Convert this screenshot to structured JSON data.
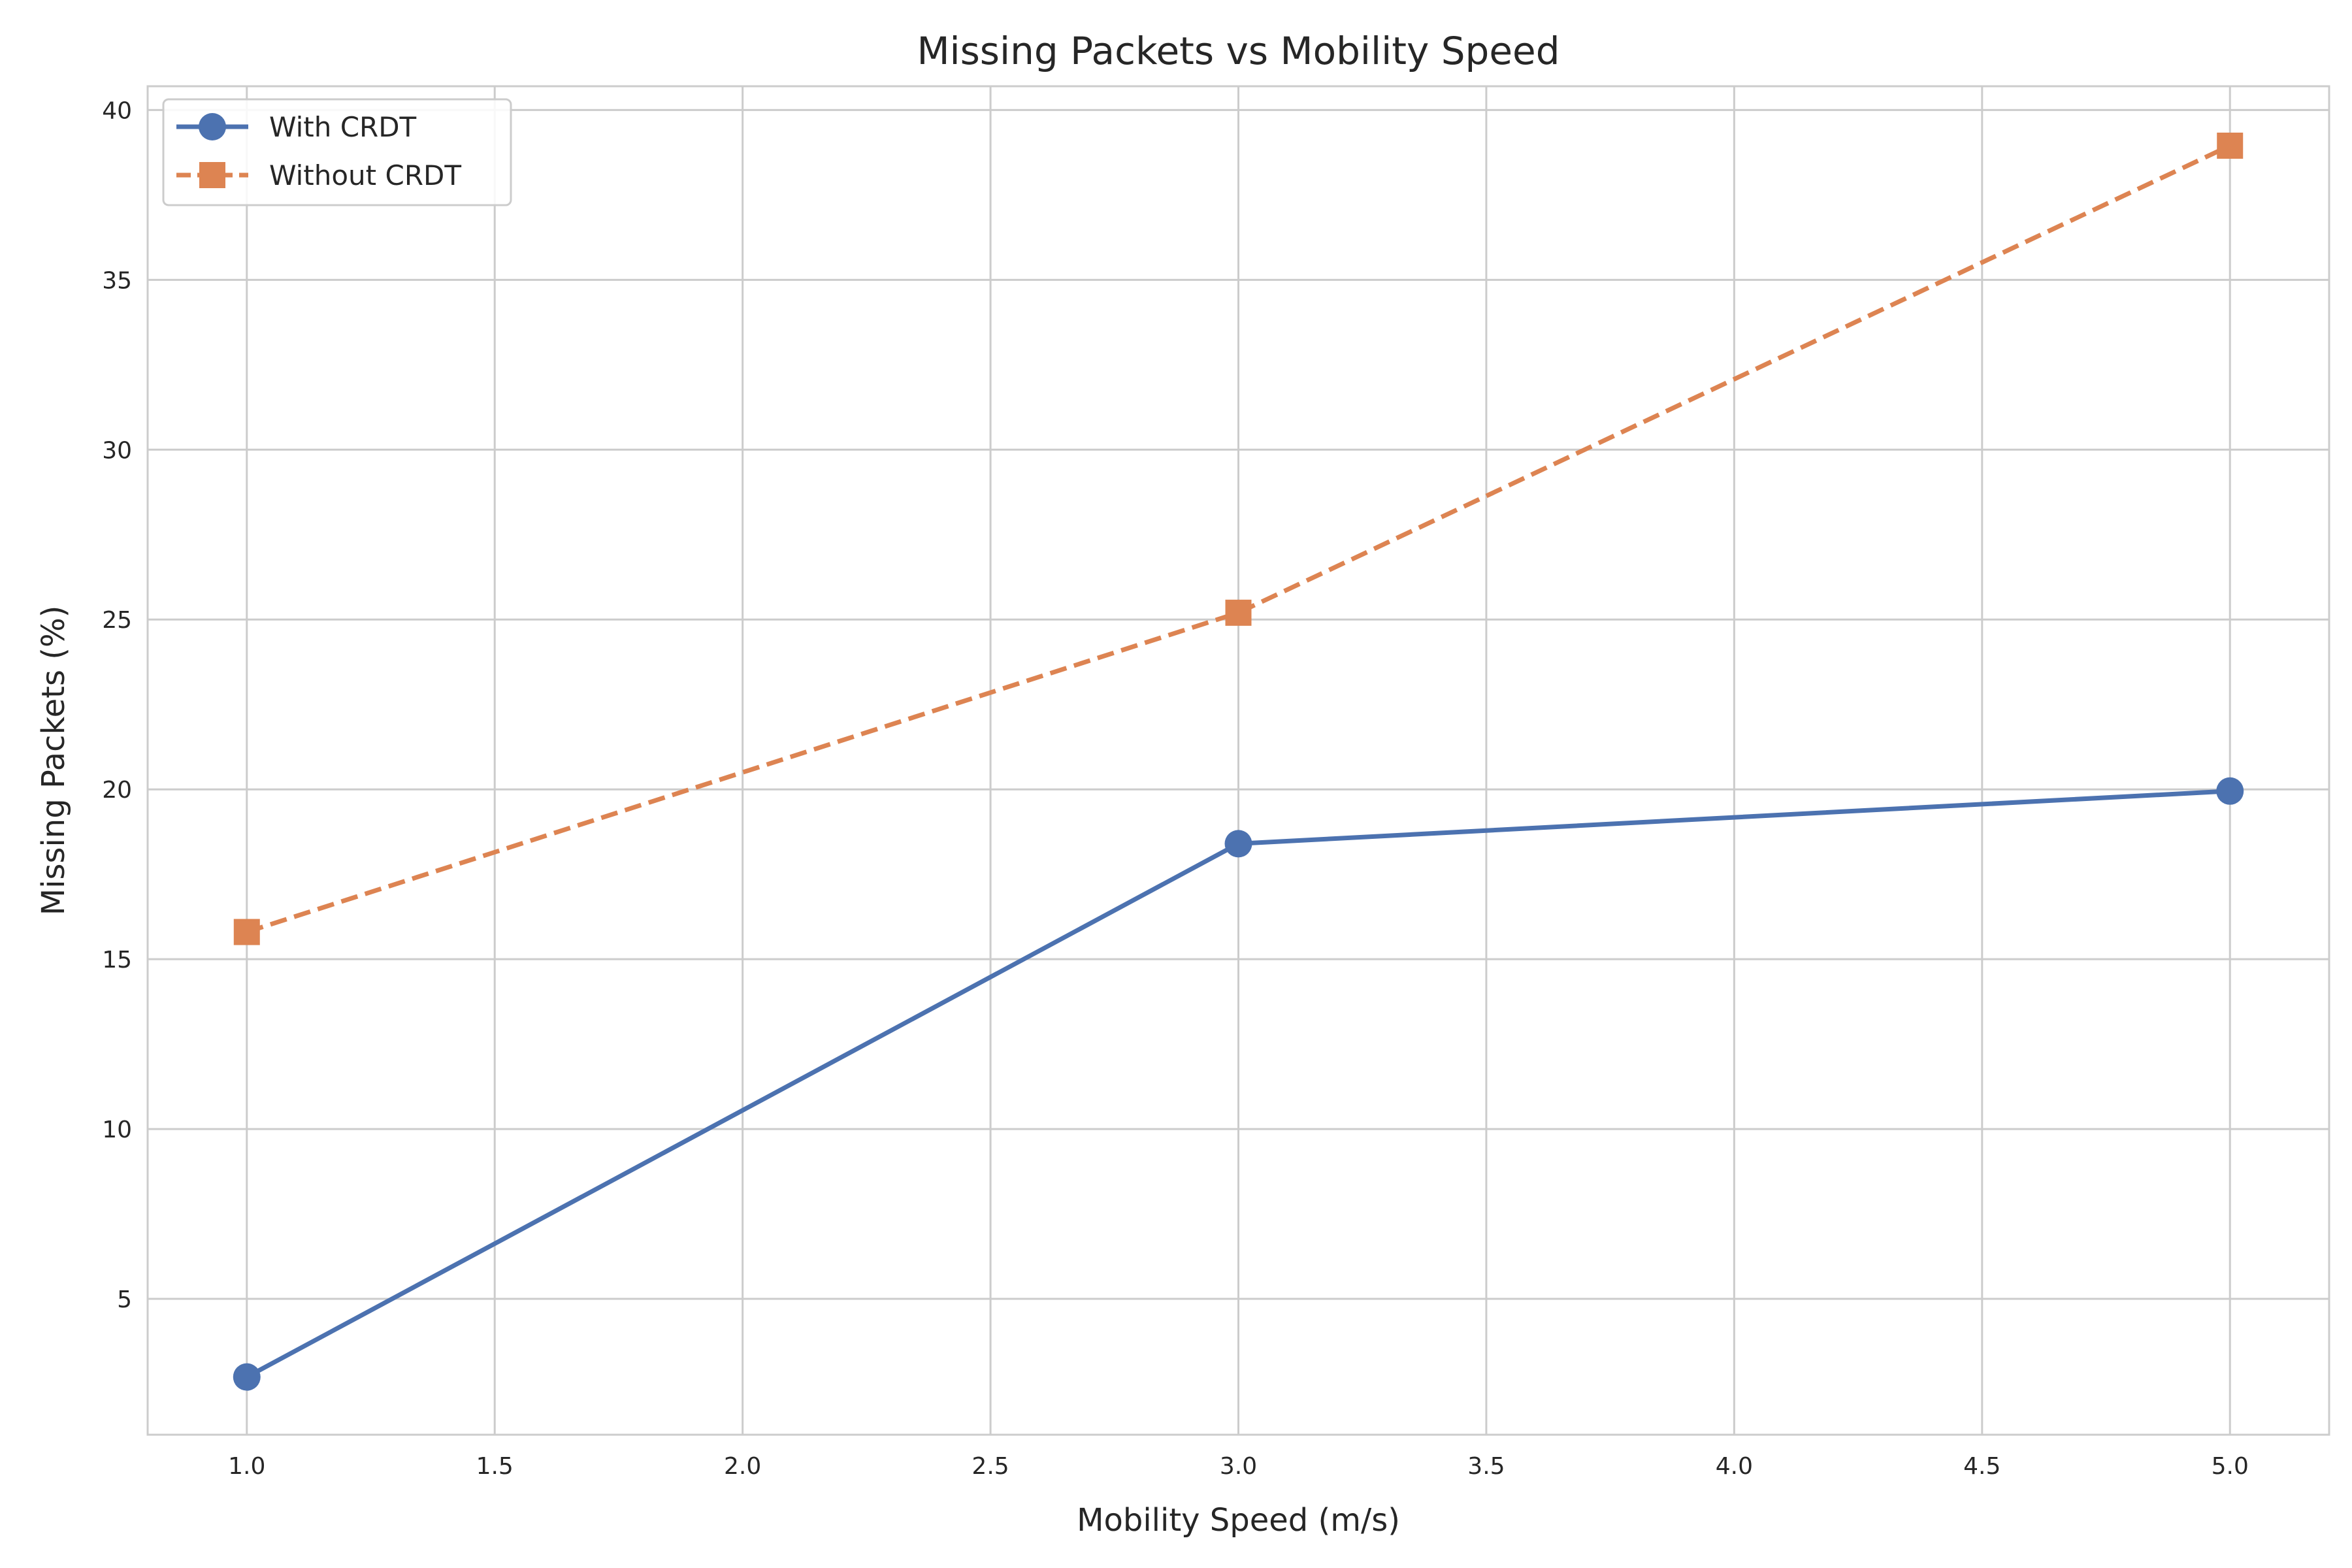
{
  "chart_data": {
    "type": "line",
    "title": "Missing Packets vs Mobility Speed",
    "xlabel": "Mobility Speed (m/s)",
    "ylabel": "Missing Packets (%)",
    "x": [
      1.0,
      3.0,
      5.0
    ],
    "series": [
      {
        "name": "With CRDT",
        "values": [
          2.7,
          18.4,
          19.95
        ],
        "color": "#4c72b0",
        "marker": "circle",
        "linestyle": "solid"
      },
      {
        "name": "Without CRDT",
        "values": [
          15.8,
          25.2,
          38.95
        ],
        "color": "#dd8452",
        "marker": "square",
        "linestyle": "dashed"
      }
    ],
    "xlim": [
      0.8,
      5.2
    ],
    "ylim": [
      1.0,
      40.7
    ],
    "xticks": [
      "1.0",
      "1.5",
      "2.0",
      "2.5",
      "3.0",
      "3.5",
      "4.0",
      "4.5",
      "5.0"
    ],
    "yticks": [
      "5",
      "10",
      "15",
      "20",
      "25",
      "30",
      "35",
      "40"
    ],
    "grid": true,
    "legend_position": "top-left",
    "colors": {
      "grid": "#cccccc",
      "spine": "#cccccc",
      "background": "#ffffff"
    }
  }
}
